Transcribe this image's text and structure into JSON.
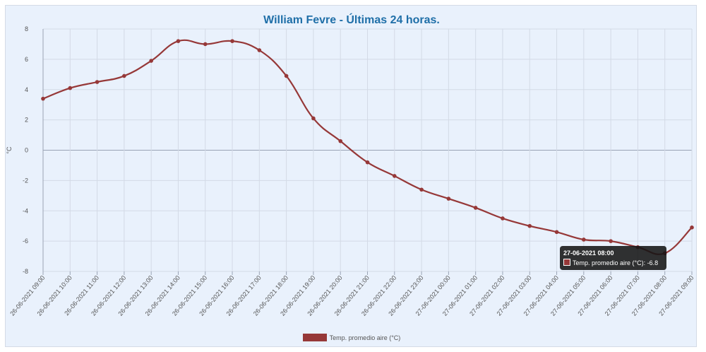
{
  "title": "William Fevre - Últimas 24 horas.",
  "chart_data": {
    "type": "line",
    "title": "William Fevre - Últimas 24 horas.",
    "xlabel": "",
    "ylabel": "°C",
    "ylim": [
      -8,
      8
    ],
    "yticks": [
      8,
      6,
      4,
      2,
      0,
      -2,
      -4,
      -6,
      -8
    ],
    "x": [
      "26-06-2021 09:00",
      "26-06-2021 10:00",
      "26-06-2021 11:00",
      "26-06-2021 12:00",
      "26-06-2021 13:00",
      "26-06-2021 14:00",
      "26-06-2021 15:00",
      "26-06-2021 16:00",
      "26-06-2021 17:00",
      "26-06-2021 18:00",
      "26-06-2021 19:00",
      "26-06-2021 20:00",
      "26-06-2021 21:00",
      "26-06-2021 22:00",
      "26-06-2021 23:00",
      "27-06-2021 00:00",
      "27-06-2021 01:00",
      "27-06-2021 02:00",
      "27-06-2021 03:00",
      "27-06-2021 04:00",
      "27-06-2021 05:00",
      "27-06-2021 06:00",
      "27-06-2021 07:00",
      "27-06-2021 08:00",
      "27-06-2021 09:00"
    ],
    "series": [
      {
        "name": "Temp. promedio aire (°C)",
        "color": "#963838",
        "values": [
          3.4,
          4.1,
          4.5,
          4.9,
          5.9,
          7.2,
          7.0,
          7.2,
          6.6,
          4.9,
          2.1,
          0.6,
          -0.8,
          -1.7,
          -2.6,
          -3.2,
          -3.8,
          -4.5,
          -5.0,
          -5.4,
          -5.9,
          -6.0,
          -6.4,
          -6.8,
          -5.1
        ]
      }
    ],
    "grid": true,
    "legend": "bottom"
  },
  "tooltip": {
    "title": "27-06-2021 08:00",
    "text": "Temp. promedio aire (°C): -6.8"
  },
  "legend": {
    "label": "Temp. promedio aire (°C)"
  }
}
